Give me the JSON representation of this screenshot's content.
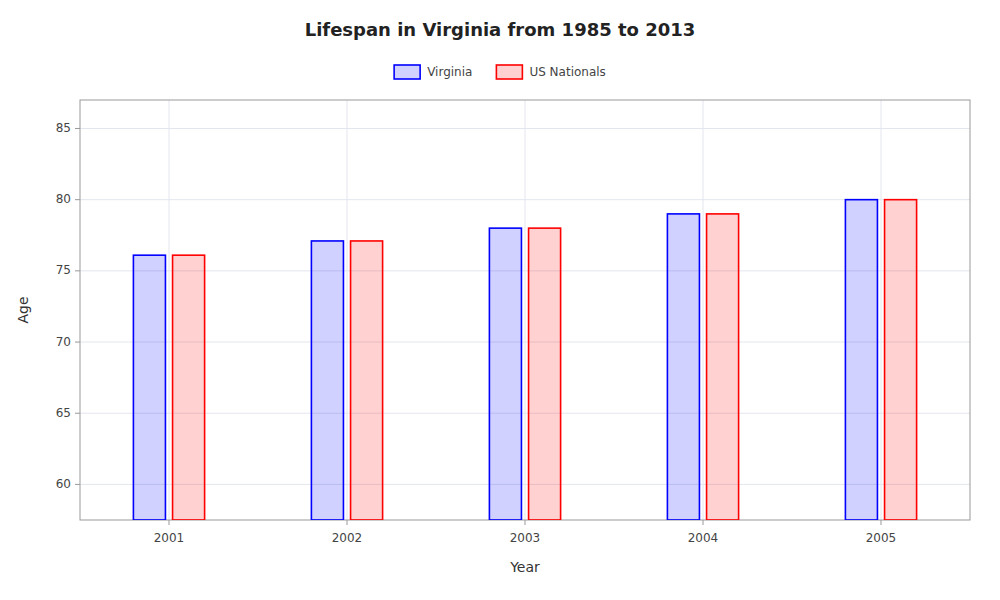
{
  "chart_data": {
    "type": "bar",
    "title": "Lifespan in Virginia from 1985 to 2013",
    "x_label": "Year",
    "y_label": "Age",
    "categories": [
      "2001",
      "2002",
      "2003",
      "2004",
      "2005"
    ],
    "series": [
      {
        "name": "Virginia",
        "color": "#0000ff",
        "values": [
          76.1,
          77.1,
          78.0,
          79.0,
          80.0
        ]
      },
      {
        "name": "US Nationals",
        "color": "#ff0000",
        "values": [
          76.1,
          77.1,
          78.0,
          79.0,
          80.0
        ]
      }
    ],
    "ylim": [
      57.5,
      87
    ],
    "yticks": [
      60,
      65,
      70,
      75,
      80,
      85
    ],
    "grid": true,
    "legend": "top"
  }
}
